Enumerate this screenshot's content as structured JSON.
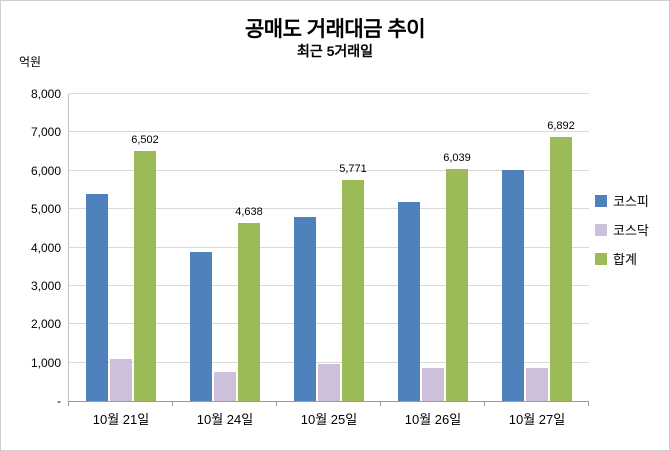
{
  "title": "공매도 거래대금 추이",
  "subtitle": "최근 5거래일",
  "y_axis_unit": "억원",
  "chart_data": {
    "type": "bar",
    "title": "공매도 거래대금 추이",
    "subtitle": "최근 5거래일",
    "ylabel": "억원",
    "xlabel": "",
    "ylim": [
      0,
      8000
    ],
    "grid": true,
    "legend_position": "right",
    "categories": [
      "10월 21일",
      "10월 24일",
      "10월 25일",
      "10월 26일",
      "10월 27일"
    ],
    "series": [
      {
        "key": "kospi",
        "name": "코스피",
        "color": "#4F81BD",
        "values": [
          5400,
          3890,
          4800,
          5180,
          6020
        ],
        "show_labels": false,
        "labels": []
      },
      {
        "key": "kosdaq",
        "name": "코스닥",
        "color": "#CCC0DA",
        "values": [
          1100,
          748,
          970,
          860,
          872
        ],
        "show_labels": false,
        "labels": []
      },
      {
        "key": "total",
        "name": "합계",
        "color": "#9BBB59",
        "values": [
          6502,
          4638,
          5771,
          6039,
          6892
        ],
        "show_labels": true,
        "labels": [
          "6,502",
          "4,638",
          "5,771",
          "6,039",
          "6,892"
        ]
      }
    ],
    "y_ticks": [
      {
        "label": "8,000",
        "value": 8000
      },
      {
        "label": "7,000",
        "value": 7000
      },
      {
        "label": "6,000",
        "value": 6000
      },
      {
        "label": "5,000",
        "value": 5000
      },
      {
        "label": "4,000",
        "value": 4000
      },
      {
        "label": "3,000",
        "value": 3000
      },
      {
        "label": "2,000",
        "value": 2000
      },
      {
        "label": "1,000",
        "value": 1000
      },
      {
        "label": "-",
        "value": 0
      }
    ]
  }
}
